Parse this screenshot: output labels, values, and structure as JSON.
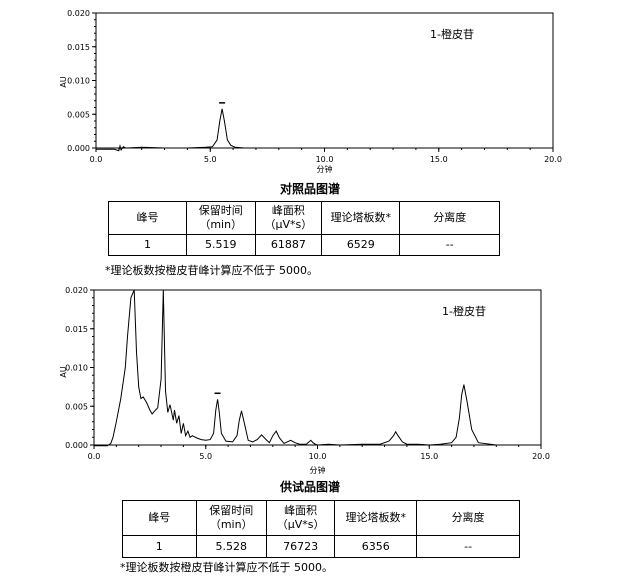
{
  "panels": [
    {
      "ylabel": "AU",
      "xlabel": "分钟",
      "annotation": "1-橙皮苷",
      "caption": "对照品图谱",
      "y_ticks": [
        "0.000",
        "0.005",
        "0.010",
        "0.015",
        "0.020"
      ],
      "x_ticks": [
        "0.0",
        "5.0",
        "10.0",
        "15.0",
        "20.0"
      ],
      "table": {
        "headers": [
          [
            "峰号"
          ],
          [
            "保留时间",
            "（min）"
          ],
          [
            "峰面积",
            "（µV*s）"
          ],
          [
            "理论塔板数*"
          ],
          [
            "分离度"
          ]
        ],
        "row": [
          "1",
          "5.519",
          "61887",
          "6529",
          "--"
        ]
      },
      "note": "*理论板数按橙皮苷峰计算应不低于 5000。"
    },
    {
      "ylabel": "AU",
      "xlabel": "分钟",
      "annotation": "1-橙皮苷",
      "caption": "供试品图谱",
      "y_ticks": [
        "0.000",
        "0.005",
        "0.010",
        "0.015",
        "0.020"
      ],
      "x_ticks": [
        "0.0",
        "5.0",
        "10.0",
        "15.0",
        "20.0"
      ],
      "table": {
        "headers": [
          [
            "峰号"
          ],
          [
            "保留时间",
            "（min）"
          ],
          [
            "峰面积",
            "（µV*s）"
          ],
          [
            "理论塔板数*"
          ],
          [
            "分离度"
          ]
        ],
        "row": [
          "1",
          "5.528",
          "76723",
          "6356",
          "--"
        ]
      },
      "note": "*理论板数按橙皮苷峰计算应不低于 5000。"
    }
  ],
  "chart_data": [
    {
      "type": "line",
      "xlim": [
        0,
        20
      ],
      "ylim": [
        0,
        0.02
      ],
      "ylabel": "AU",
      "xlabel": "分钟",
      "grid": false,
      "series": [
        {
          "x": [
            0,
            0.8,
            1.0,
            1.05,
            1.1,
            1.2,
            1.3,
            2.0,
            3.0,
            4.0,
            4.8,
            5.1,
            5.3,
            5.42,
            5.519,
            5.62,
            5.75,
            5.9,
            6.1,
            6.5,
            8.0,
            10.0,
            12.0,
            15.0,
            18.0,
            20.0
          ],
          "y": [
            -0.0002,
            -0.0002,
            -0.0004,
            0.0003,
            -0.0003,
            0.0002,
            0.0,
            0.0001,
            0.0,
            0.0,
            0.0001,
            0.0002,
            0.0012,
            0.004,
            0.0058,
            0.004,
            0.0012,
            0.0004,
            0.0001,
            0.0,
            0.0,
            0.0,
            0.0,
            0.0,
            0.0,
            0.0
          ]
        }
      ],
      "peaks": [
        {
          "x": 5.519,
          "label": "1"
        }
      ]
    },
    {
      "type": "line",
      "xlim": [
        0,
        20
      ],
      "ylim": [
        0,
        0.02
      ],
      "ylabel": "AU",
      "xlabel": "分钟",
      "grid": false,
      "series": [
        {
          "x": [
            0,
            0.6,
            0.75,
            0.85,
            1.0,
            1.2,
            1.4,
            1.5,
            1.65,
            1.8,
            1.9,
            2.0,
            2.1,
            2.2,
            2.35,
            2.5,
            2.6,
            2.75,
            2.85,
            3.0,
            3.1,
            3.2,
            3.3,
            3.4,
            3.55,
            3.6,
            3.7,
            3.8,
            3.9,
            4.0,
            4.1,
            4.2,
            4.3,
            4.4,
            4.6,
            4.8,
            5.0,
            5.2,
            5.35,
            5.45,
            5.528,
            5.6,
            5.7,
            5.9,
            6.2,
            6.4,
            6.5,
            6.6,
            6.75,
            6.9,
            7.1,
            7.3,
            7.5,
            7.7,
            7.85,
            8.0,
            8.15,
            8.3,
            8.5,
            8.8,
            9.0,
            9.2,
            9.5,
            9.7,
            9.8,
            9.9,
            10.0,
            10.5,
            11.0,
            12.0,
            12.8,
            13.2,
            13.4,
            13.5,
            13.6,
            13.8,
            14.0,
            14.5,
            15.0,
            15.5,
            16.0,
            16.2,
            16.35,
            16.45,
            16.55,
            16.7,
            16.9,
            17.2,
            18.0,
            19.0,
            20.0
          ],
          "y": [
            -0.0001,
            -0.0001,
            0.0002,
            0.001,
            0.003,
            0.006,
            0.01,
            0.014,
            0.019,
            0.02,
            0.012,
            0.0075,
            0.006,
            0.0062,
            0.0055,
            0.0045,
            0.004,
            0.0045,
            0.0048,
            0.0085,
            0.02,
            0.007,
            0.0042,
            0.0052,
            0.0032,
            0.0045,
            0.0028,
            0.0038,
            0.0015,
            0.0028,
            0.0012,
            0.0018,
            0.001,
            0.0012,
            0.0009,
            0.0007,
            0.0006,
            0.0007,
            0.0015,
            0.0045,
            0.0059,
            0.0043,
            0.0015,
            0.0005,
            0.0004,
            0.0012,
            0.0032,
            0.0044,
            0.0025,
            0.0006,
            0.0004,
            0.0007,
            0.0013,
            0.0007,
            0.0003,
            0.0012,
            0.0018,
            0.0009,
            0.0002,
            0.0006,
            0.0003,
            0.0001,
            0.0001,
            0.0006,
            0.0003,
            0.0001,
            0.0,
            0.0001,
            0.0,
            0.0001,
            0.0001,
            0.0005,
            0.0012,
            0.0017,
            0.0012,
            0.0004,
            0.0001,
            0.0001,
            0.0,
            0.0001,
            0.0003,
            0.001,
            0.0035,
            0.0065,
            0.0078,
            0.0055,
            0.002,
            0.0003,
            0.0,
            0.0,
            0.0
          ]
        }
      ],
      "peaks": [
        {
          "x": 5.528,
          "label": "1"
        }
      ]
    }
  ]
}
